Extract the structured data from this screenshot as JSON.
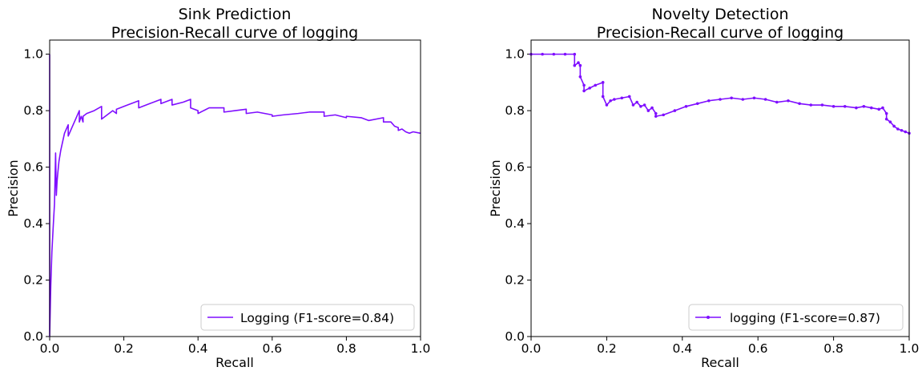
{
  "chart_data": [
    {
      "type": "line",
      "title": "Sink Prediction",
      "subtitle": "Precision-Recall curve of logging",
      "xlabel": "Recall",
      "ylabel": "Precision",
      "xlim": [
        0.0,
        1.0
      ],
      "ylim": [
        0.0,
        1.05
      ],
      "xticks": [
        "0.0",
        "0.2",
        "0.4",
        "0.6",
        "0.8",
        "1.0"
      ],
      "yticks": [
        "0.0",
        "0.2",
        "0.4",
        "0.6",
        "0.8",
        "1.0"
      ],
      "grid": false,
      "legend_position": "lower-right",
      "series": [
        {
          "name": "Logging (F1-score=0.84)",
          "color": "#7f0eff",
          "marker": "none",
          "x": [
            0.0,
            0.0,
            0.003,
            0.006,
            0.01,
            0.013,
            0.016,
            0.018,
            0.02,
            0.022,
            0.025,
            0.03,
            0.04,
            0.05,
            0.05,
            0.06,
            0.07,
            0.08,
            0.08,
            0.085,
            0.09,
            0.09,
            0.1,
            0.12,
            0.14,
            0.14,
            0.15,
            0.17,
            0.18,
            0.18,
            0.21,
            0.24,
            0.24,
            0.27,
            0.3,
            0.3,
            0.33,
            0.33,
            0.36,
            0.38,
            0.38,
            0.4,
            0.4,
            0.43,
            0.47,
            0.47,
            0.5,
            0.53,
            0.53,
            0.56,
            0.6,
            0.6,
            0.63,
            0.67,
            0.7,
            0.74,
            0.74,
            0.77,
            0.8,
            0.8,
            0.84,
            0.86,
            0.9,
            0.9,
            0.92,
            0.93,
            0.94,
            0.94,
            0.95,
            0.96,
            0.97,
            0.98,
            1.0
          ],
          "y": [
            1.0,
            0.0,
            0.18,
            0.3,
            0.4,
            0.47,
            0.65,
            0.5,
            0.55,
            0.58,
            0.62,
            0.66,
            0.72,
            0.75,
            0.71,
            0.74,
            0.77,
            0.8,
            0.76,
            0.78,
            0.76,
            0.78,
            0.79,
            0.8,
            0.815,
            0.77,
            0.78,
            0.8,
            0.79,
            0.805,
            0.82,
            0.835,
            0.81,
            0.825,
            0.84,
            0.825,
            0.84,
            0.82,
            0.83,
            0.84,
            0.81,
            0.8,
            0.79,
            0.81,
            0.81,
            0.795,
            0.8,
            0.805,
            0.79,
            0.795,
            0.785,
            0.78,
            0.785,
            0.79,
            0.795,
            0.795,
            0.78,
            0.785,
            0.775,
            0.78,
            0.775,
            0.765,
            0.775,
            0.76,
            0.76,
            0.745,
            0.74,
            0.73,
            0.735,
            0.725,
            0.72,
            0.725,
            0.72
          ]
        }
      ]
    },
    {
      "type": "line",
      "title": "Novelty Detection",
      "subtitle": "Precision-Recall curve of logging",
      "xlabel": "Recall",
      "ylabel": "Precision",
      "xlim": [
        0.0,
        1.0
      ],
      "ylim": [
        0.0,
        1.05
      ],
      "xticks": [
        "0.0",
        "0.2",
        "0.4",
        "0.6",
        "0.8",
        "1.0"
      ],
      "yticks": [
        "0.0",
        "0.2",
        "0.4",
        "0.6",
        "0.8",
        "1.0"
      ],
      "grid": false,
      "legend_position": "lower-right",
      "series": [
        {
          "name": "logging (F1-score=0.87)",
          "color": "#7f0eff",
          "marker": "dot",
          "x": [
            0.0,
            0.03,
            0.06,
            0.09,
            0.115,
            0.115,
            0.125,
            0.13,
            0.13,
            0.14,
            0.14,
            0.155,
            0.17,
            0.19,
            0.19,
            0.2,
            0.21,
            0.22,
            0.24,
            0.26,
            0.27,
            0.28,
            0.29,
            0.3,
            0.31,
            0.32,
            0.33,
            0.33,
            0.35,
            0.38,
            0.41,
            0.44,
            0.47,
            0.5,
            0.53,
            0.56,
            0.59,
            0.62,
            0.65,
            0.68,
            0.71,
            0.74,
            0.77,
            0.8,
            0.83,
            0.86,
            0.88,
            0.9,
            0.92,
            0.93,
            0.94,
            0.94,
            0.95,
            0.96,
            0.97,
            0.98,
            0.99,
            1.0
          ],
          "y": [
            1.0,
            1.0,
            1.0,
            1.0,
            1.0,
            0.96,
            0.97,
            0.96,
            0.92,
            0.89,
            0.87,
            0.88,
            0.89,
            0.9,
            0.85,
            0.82,
            0.835,
            0.84,
            0.845,
            0.85,
            0.82,
            0.83,
            0.815,
            0.82,
            0.8,
            0.81,
            0.79,
            0.78,
            0.785,
            0.8,
            0.815,
            0.825,
            0.835,
            0.84,
            0.845,
            0.84,
            0.845,
            0.84,
            0.83,
            0.835,
            0.825,
            0.82,
            0.82,
            0.815,
            0.815,
            0.81,
            0.815,
            0.81,
            0.805,
            0.81,
            0.79,
            0.77,
            0.76,
            0.745,
            0.735,
            0.73,
            0.725,
            0.72
          ]
        }
      ]
    }
  ]
}
